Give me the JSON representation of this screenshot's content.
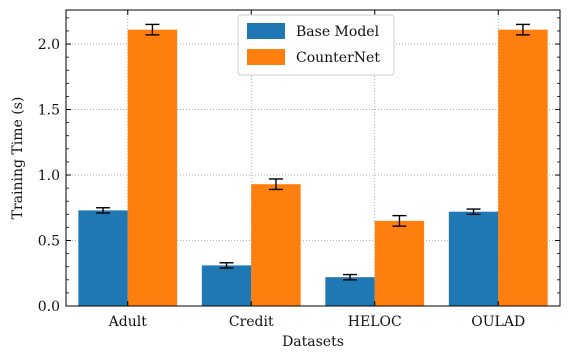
{
  "chart_data": {
    "type": "bar",
    "xlabel": "Datasets",
    "ylabel": "Training Time (s)",
    "categories": [
      "Adult",
      "Credit",
      "HELOC",
      "OULAD"
    ],
    "ylim": [
      0,
      2.26
    ],
    "yticks": [
      0.0,
      0.5,
      1.0,
      1.5,
      2.0
    ],
    "ytick_labels": [
      "0.0",
      "0.5",
      "1.0",
      "1.5",
      "2.0"
    ],
    "grid": "dotted",
    "legend_position": "top-center",
    "series": [
      {
        "name": "Base Model",
        "color": "#1f77b4",
        "values": [
          0.73,
          0.31,
          0.22,
          0.72
        ],
        "errors": [
          0.02,
          0.02,
          0.02,
          0.02
        ]
      },
      {
        "name": "CounterNet",
        "color": "#ff7f0e",
        "values": [
          2.11,
          0.93,
          0.65,
          2.11
        ],
        "errors": [
          0.04,
          0.04,
          0.04,
          0.04
        ]
      }
    ]
  }
}
